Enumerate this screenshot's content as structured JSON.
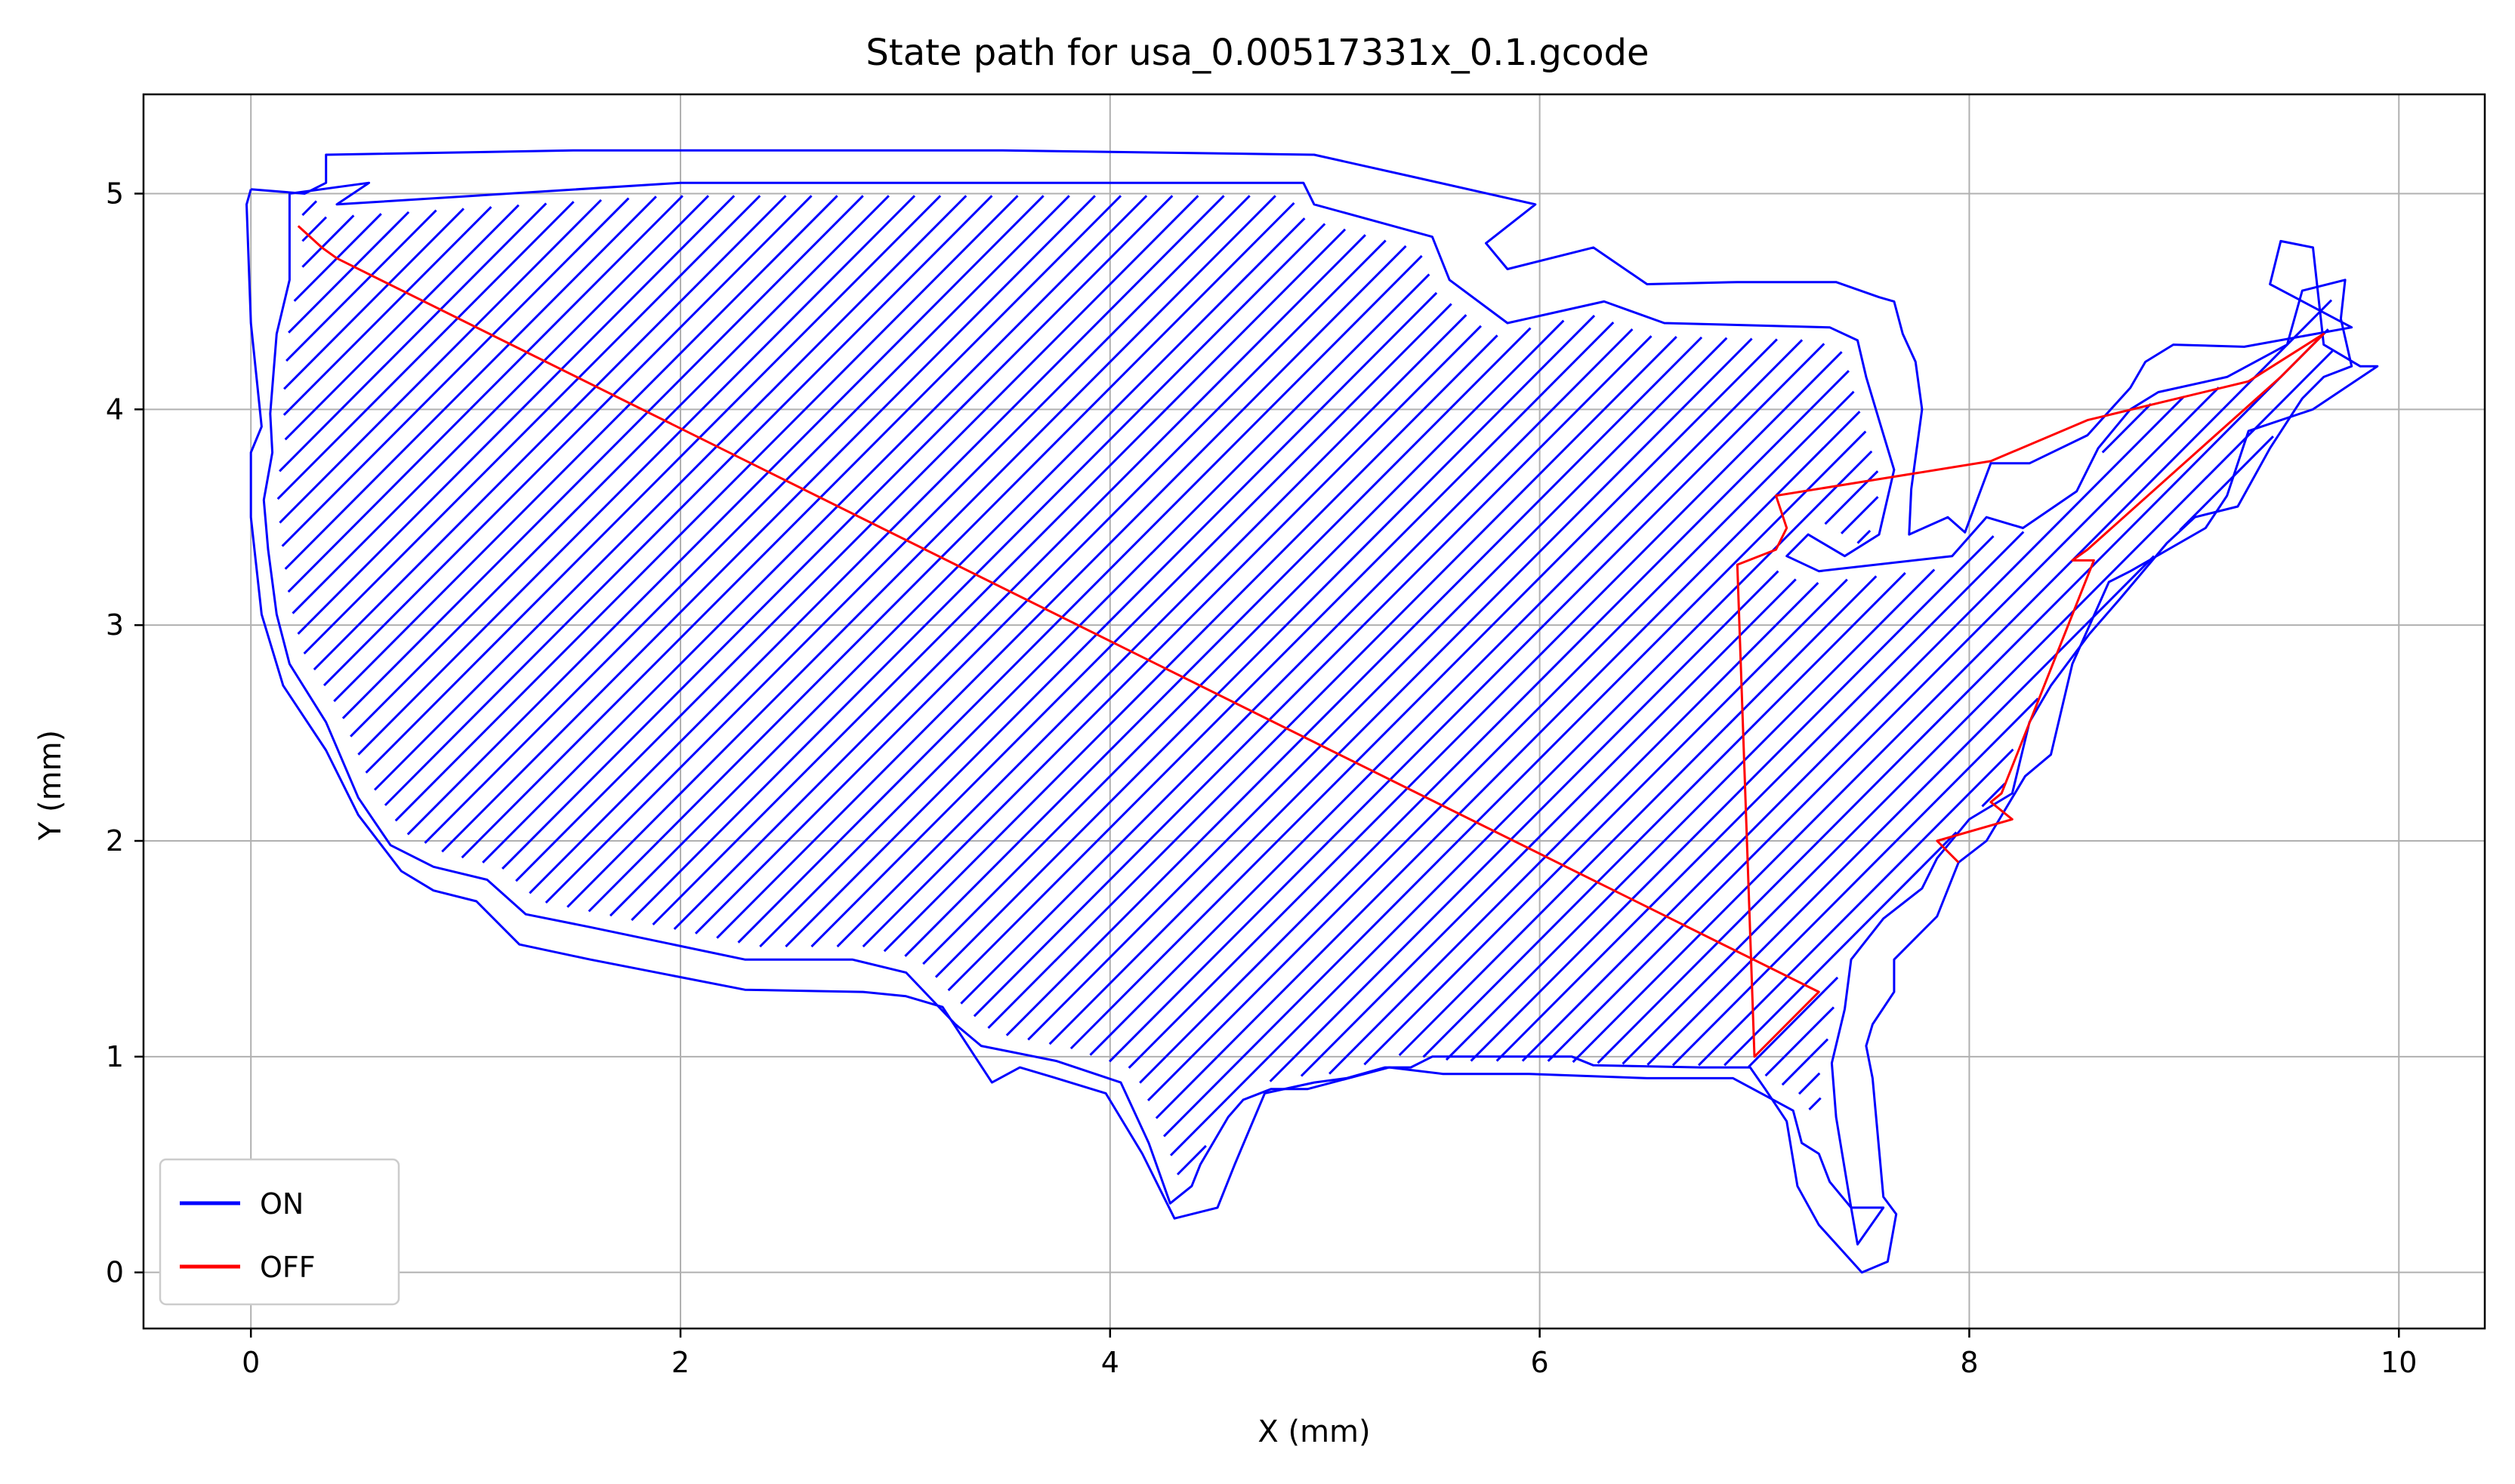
{
  "chart_data": {
    "type": "line",
    "title": "State path for usa_0.00517331x_0.1.gcode",
    "xlabel": "X (mm)",
    "ylabel": "Y (mm)",
    "xlim": [
      -0.5,
      10.4
    ],
    "ylim": [
      -0.26,
      5.46
    ],
    "xticks": [
      0,
      2,
      4,
      6,
      8,
      10
    ],
    "yticks": [
      0,
      1,
      2,
      3,
      4,
      5
    ],
    "grid": true,
    "legend": {
      "position": "lower-left",
      "entries": [
        "ON",
        "OFF"
      ]
    },
    "series": [
      {
        "name": "ON",
        "color": "#0000ff",
        "outer_outline": [
          [
            0,
            5.02
          ],
          [
            0.25,
            5.0
          ],
          [
            0.35,
            5.05
          ],
          [
            0.35,
            5.18
          ],
          [
            1.5,
            5.2
          ],
          [
            3.5,
            5.2
          ],
          [
            4.95,
            5.18
          ],
          [
            5.4,
            5.08
          ],
          [
            5.98,
            4.95
          ],
          [
            5.75,
            4.77
          ],
          [
            5.85,
            4.65
          ],
          [
            6.25,
            4.75
          ],
          [
            6.5,
            4.58
          ],
          [
            6.92,
            4.59
          ],
          [
            7.38,
            4.59
          ],
          [
            7.58,
            4.52
          ],
          [
            7.65,
            4.5
          ],
          [
            7.69,
            4.35
          ],
          [
            7.75,
            4.22
          ],
          [
            7.78,
            4.0
          ],
          [
            7.73,
            3.63
          ],
          [
            7.72,
            3.42
          ],
          [
            7.9,
            3.5
          ],
          [
            7.98,
            3.43
          ],
          [
            8.1,
            3.75
          ],
          [
            8.28,
            3.75
          ],
          [
            8.55,
            3.88
          ],
          [
            8.75,
            4.1
          ],
          [
            8.82,
            4.22
          ],
          [
            8.95,
            4.3
          ],
          [
            9.28,
            4.29
          ],
          [
            9.78,
            4.38
          ],
          [
            9.4,
            4.58
          ],
          [
            9.45,
            4.78
          ],
          [
            9.6,
            4.75
          ],
          [
            9.65,
            4.3
          ],
          [
            9.82,
            4.2
          ],
          [
            9.9,
            4.2
          ],
          [
            9.6,
            4.0
          ],
          [
            9.3,
            3.9
          ],
          [
            9.2,
            3.6
          ],
          [
            9.1,
            3.45
          ],
          [
            8.75,
            3.25
          ],
          [
            8.65,
            3.2
          ],
          [
            8.48,
            2.82
          ],
          [
            8.38,
            2.4
          ],
          [
            8.26,
            2.3
          ],
          [
            8.08,
            2.0
          ],
          [
            7.95,
            1.9
          ],
          [
            7.85,
            1.65
          ],
          [
            7.65,
            1.45
          ],
          [
            7.65,
            1.3
          ],
          [
            7.55,
            1.15
          ],
          [
            7.52,
            1.05
          ],
          [
            7.55,
            0.9
          ],
          [
            7.6,
            0.35
          ],
          [
            7.66,
            0.27
          ],
          [
            7.62,
            0.05
          ],
          [
            7.5,
            0.0
          ],
          [
            7.3,
            0.22
          ],
          [
            7.2,
            0.4
          ],
          [
            7.15,
            0.7
          ],
          [
            7.05,
            0.85
          ],
          [
            6.98,
            0.95
          ],
          [
            6.75,
            0.95
          ],
          [
            6.25,
            0.96
          ],
          [
            6.15,
            1.0
          ],
          [
            5.7,
            1.0
          ],
          [
            5.5,
            1.0
          ],
          [
            5.4,
            0.95
          ],
          [
            5.28,
            0.95
          ],
          [
            5.1,
            0.9
          ],
          [
            4.95,
            0.88
          ],
          [
            4.72,
            0.83
          ],
          [
            4.58,
            0.5
          ],
          [
            4.5,
            0.3
          ],
          [
            4.3,
            0.25
          ],
          [
            4.15,
            0.55
          ],
          [
            3.98,
            0.83
          ],
          [
            3.75,
            0.9
          ],
          [
            3.58,
            0.95
          ],
          [
            3.45,
            0.88
          ],
          [
            3.22,
            1.23
          ],
          [
            3.05,
            1.28
          ],
          [
            2.85,
            1.3
          ],
          [
            2.3,
            1.31
          ],
          [
            1.58,
            1.45
          ],
          [
            1.25,
            1.52
          ],
          [
            1.05,
            1.72
          ],
          [
            0.85,
            1.77
          ],
          [
            0.7,
            1.86
          ],
          [
            0.5,
            2.12
          ],
          [
            0.35,
            2.42
          ],
          [
            0.15,
            2.72
          ],
          [
            0.05,
            3.05
          ],
          [
            0.0,
            3.5
          ],
          [
            0.0,
            3.8
          ],
          [
            0.05,
            3.92
          ],
          [
            0.0,
            4.4
          ],
          [
            -0.02,
            4.95
          ],
          [
            0,
            5.02
          ]
        ],
        "inner_outline": [
          [
            0.18,
            5.0
          ],
          [
            0.55,
            5.05
          ],
          [
            0.4,
            4.95
          ],
          [
            2.0,
            5.05
          ],
          [
            4.9,
            5.05
          ],
          [
            4.95,
            4.95
          ],
          [
            5.5,
            4.8
          ],
          [
            5.58,
            4.6
          ],
          [
            5.85,
            4.4
          ],
          [
            6.3,
            4.5
          ],
          [
            6.58,
            4.4
          ],
          [
            7.35,
            4.38
          ],
          [
            7.48,
            4.32
          ],
          [
            7.52,
            4.15
          ],
          [
            7.58,
            3.95
          ],
          [
            7.65,
            3.72
          ],
          [
            7.58,
            3.42
          ],
          [
            7.42,
            3.32
          ],
          [
            7.25,
            3.42
          ],
          [
            7.15,
            3.32
          ],
          [
            7.3,
            3.25
          ],
          [
            7.92,
            3.32
          ],
          [
            8.08,
            3.5
          ],
          [
            8.25,
            3.45
          ],
          [
            8.5,
            3.62
          ],
          [
            8.6,
            3.82
          ],
          [
            8.75,
            4.0
          ],
          [
            8.88,
            4.08
          ],
          [
            9.2,
            4.15
          ],
          [
            9.48,
            4.3
          ],
          [
            9.55,
            4.55
          ],
          [
            9.75,
            4.6
          ],
          [
            9.73,
            4.42
          ],
          [
            9.78,
            4.2
          ],
          [
            9.65,
            4.15
          ],
          [
            9.55,
            4.05
          ],
          [
            9.4,
            3.82
          ],
          [
            9.25,
            3.55
          ],
          [
            9.05,
            3.5
          ],
          [
            8.92,
            3.38
          ],
          [
            8.7,
            3.12
          ],
          [
            8.56,
            2.96
          ],
          [
            8.38,
            2.72
          ],
          [
            8.28,
            2.55
          ],
          [
            8.2,
            2.22
          ],
          [
            8.0,
            2.1
          ],
          [
            7.85,
            1.92
          ],
          [
            7.78,
            1.78
          ],
          [
            7.6,
            1.64
          ],
          [
            7.45,
            1.45
          ],
          [
            7.42,
            1.22
          ],
          [
            7.36,
            0.97
          ],
          [
            7.38,
            0.72
          ],
          [
            7.45,
            0.3
          ],
          [
            7.6,
            0.3
          ],
          [
            7.48,
            0.13
          ],
          [
            7.45,
            0.3
          ],
          [
            7.35,
            0.42
          ],
          [
            7.3,
            0.55
          ],
          [
            7.22,
            0.6
          ],
          [
            7.18,
            0.75
          ],
          [
            7.05,
            0.82
          ],
          [
            6.9,
            0.9
          ],
          [
            6.5,
            0.9
          ],
          [
            5.95,
            0.92
          ],
          [
            5.55,
            0.92
          ],
          [
            5.3,
            0.95
          ],
          [
            4.92,
            0.85
          ],
          [
            4.75,
            0.85
          ],
          [
            4.62,
            0.8
          ],
          [
            4.55,
            0.72
          ],
          [
            4.42,
            0.5
          ],
          [
            4.38,
            0.4
          ],
          [
            4.28,
            0.32
          ],
          [
            4.18,
            0.6
          ],
          [
            4.05,
            0.88
          ],
          [
            3.75,
            0.98
          ],
          [
            3.55,
            1.02
          ],
          [
            3.4,
            1.05
          ],
          [
            3.28,
            1.15
          ],
          [
            3.05,
            1.39
          ],
          [
            2.8,
            1.45
          ],
          [
            2.3,
            1.45
          ],
          [
            1.58,
            1.6
          ],
          [
            1.28,
            1.66
          ],
          [
            1.1,
            1.82
          ],
          [
            0.85,
            1.88
          ],
          [
            0.65,
            1.98
          ],
          [
            0.5,
            2.2
          ],
          [
            0.35,
            2.55
          ],
          [
            0.18,
            2.82
          ],
          [
            0.12,
            3.05
          ],
          [
            0.08,
            3.35
          ],
          [
            0.06,
            3.58
          ],
          [
            0.1,
            3.8
          ],
          [
            0.09,
            3.98
          ],
          [
            0.12,
            4.35
          ],
          [
            0.18,
            4.6
          ],
          [
            0.18,
            5.0
          ]
        ],
        "hatch_step": 0.12
      },
      {
        "name": "OFF",
        "color": "#ff0000",
        "points": [
          [
            0.22,
            4.85
          ],
          [
            0.33,
            4.75
          ],
          [
            0.4,
            4.7
          ],
          [
            7.3,
            1.3
          ],
          [
            7.0,
            1.0
          ],
          [
            6.92,
            3.28
          ],
          [
            7.1,
            3.35
          ],
          [
            7.15,
            3.45
          ],
          [
            7.1,
            3.6
          ],
          [
            8.1,
            3.76
          ],
          [
            8.55,
            3.95
          ],
          [
            9.3,
            4.13
          ],
          [
            9.65,
            4.35
          ],
          [
            9.45,
            4.15
          ],
          [
            8.55,
            3.35
          ],
          [
            8.48,
            3.3
          ],
          [
            8.58,
            3.3
          ],
          [
            8.15,
            2.22
          ],
          [
            8.1,
            2.18
          ],
          [
            8.2,
            2.1
          ],
          [
            7.85,
            2.0
          ],
          [
            7.95,
            1.9
          ]
        ]
      }
    ]
  }
}
